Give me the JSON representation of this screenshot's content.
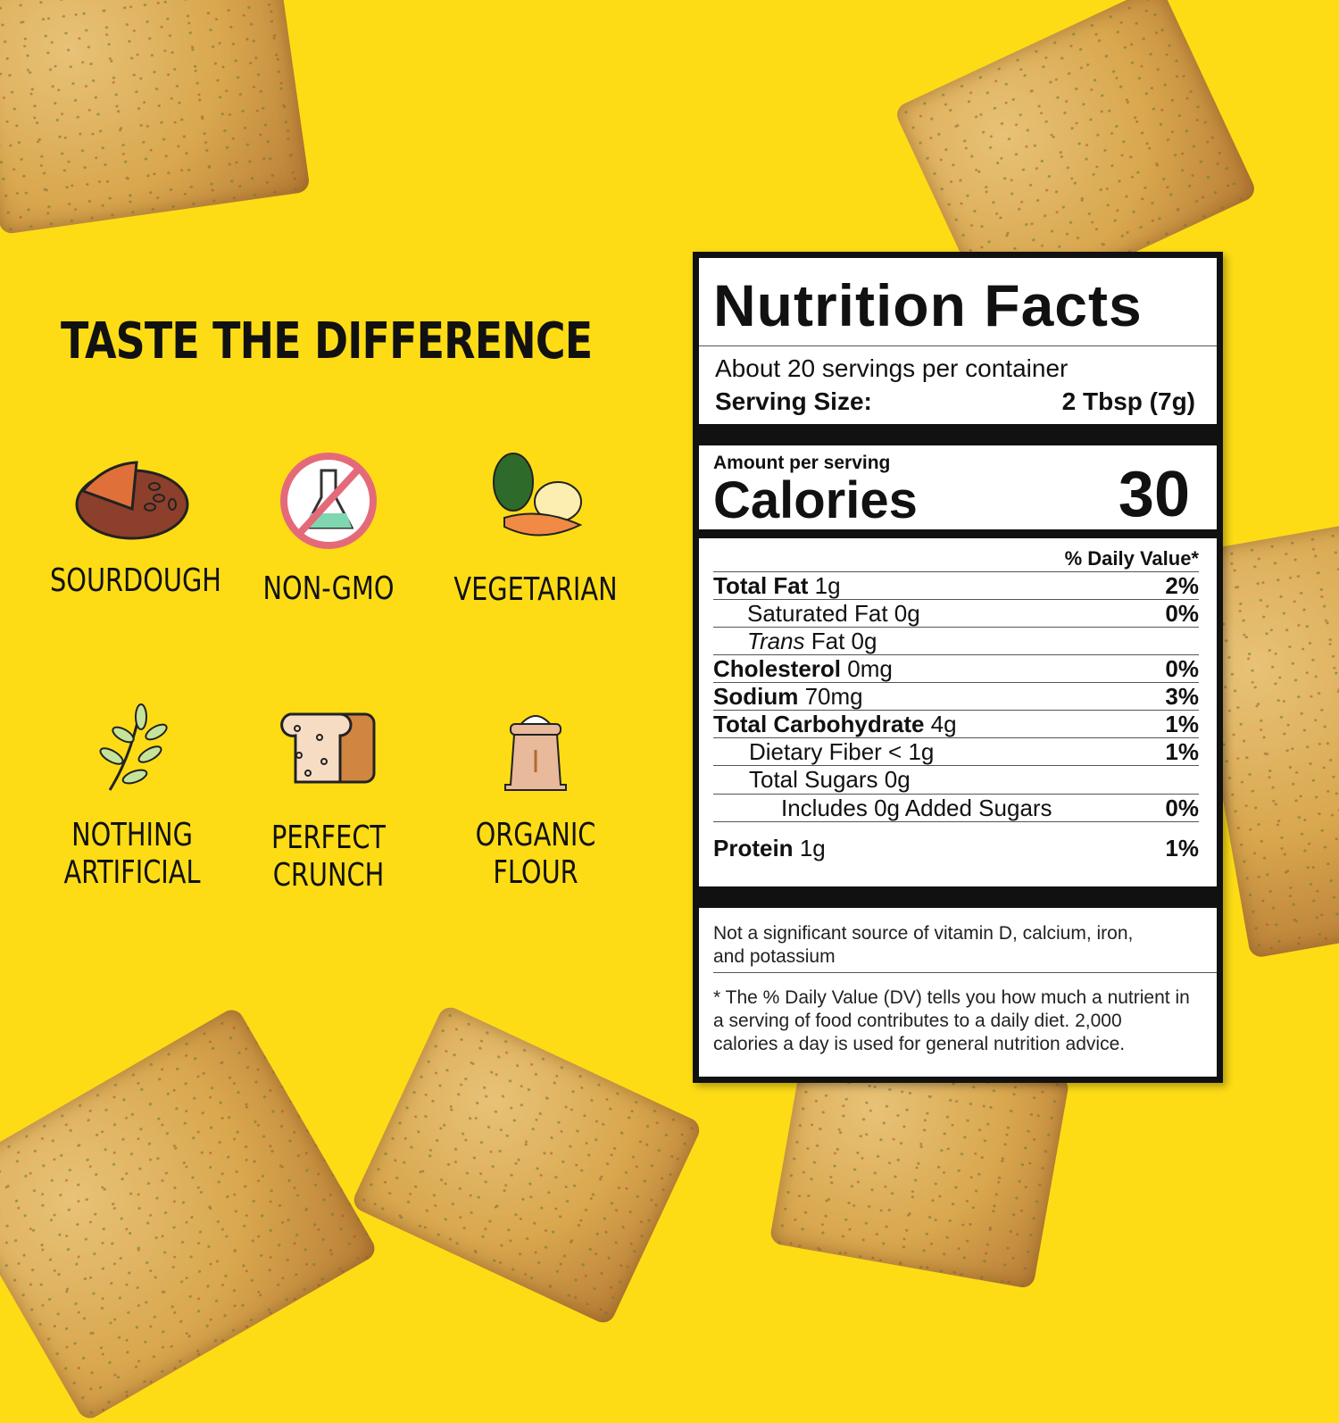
{
  "headline": "TASTE THE DIFFERENCE",
  "features": [
    {
      "label": "SOURDOUGH",
      "icon": "sourdough-bread-icon"
    },
    {
      "label": "NON-GMO",
      "icon": "no-gmo-flask-icon"
    },
    {
      "label": "VEGETARIAN",
      "icon": "vegetables-icon"
    },
    {
      "label_line1": "NOTHING",
      "label_line2": "ARTIFICIAL",
      "icon": "leaf-branch-icon"
    },
    {
      "label_line1": "PERFECT",
      "label_line2": "CRUNCH",
      "icon": "bread-slice-icon"
    },
    {
      "label_line1": "ORGANIC",
      "label_line2": "FLOUR",
      "icon": "flour-sack-icon"
    }
  ],
  "nutrition": {
    "title": "Nutrition Facts",
    "servings": "About 20 servings per container",
    "serving_size_label": "Serving Size:",
    "serving_size_value": "2 Tbsp (7g)",
    "amount_per_serving": "Amount per serving",
    "calories_label": "Calories",
    "calories_value": "30",
    "dv_header": "% Daily Value*",
    "rows": [
      {
        "name": "Total Fat",
        "amount": "1g",
        "dv": "2%"
      },
      {
        "name": "Saturated Fat 0g",
        "amount": "",
        "dv": "0%"
      },
      {
        "name": "Trans",
        "amount": "Fat 0g",
        "dv": ""
      },
      {
        "name": "Cholesterol",
        "amount": "0mg",
        "dv": "0%"
      },
      {
        "name": "Sodium",
        "amount": "70mg",
        "dv": "3%"
      },
      {
        "name": "Total Carbohydrate",
        "amount": "4g",
        "dv": "1%"
      },
      {
        "name": "Dietary Fiber < 1g",
        "amount": "",
        "dv": "1%"
      },
      {
        "name": "Total Sugars 0g",
        "amount": "",
        "dv": ""
      },
      {
        "name": "Includes 0g Added Sugars",
        "amount": "",
        "dv": "0%"
      },
      {
        "name": "Protein",
        "amount": "1g",
        "dv": "1%"
      }
    ],
    "vitamins_note": "Not a significant source of vitamin D, calcium, iron, and potassium",
    "footnote": "* The % Daily Value (DV) tells you how much a nutrient in a serving of food contributes to a daily diet. 2,000 calories a day is used for general nutrition advice."
  },
  "colors": {
    "background": "#FDDC16",
    "label_border": "#111111"
  }
}
